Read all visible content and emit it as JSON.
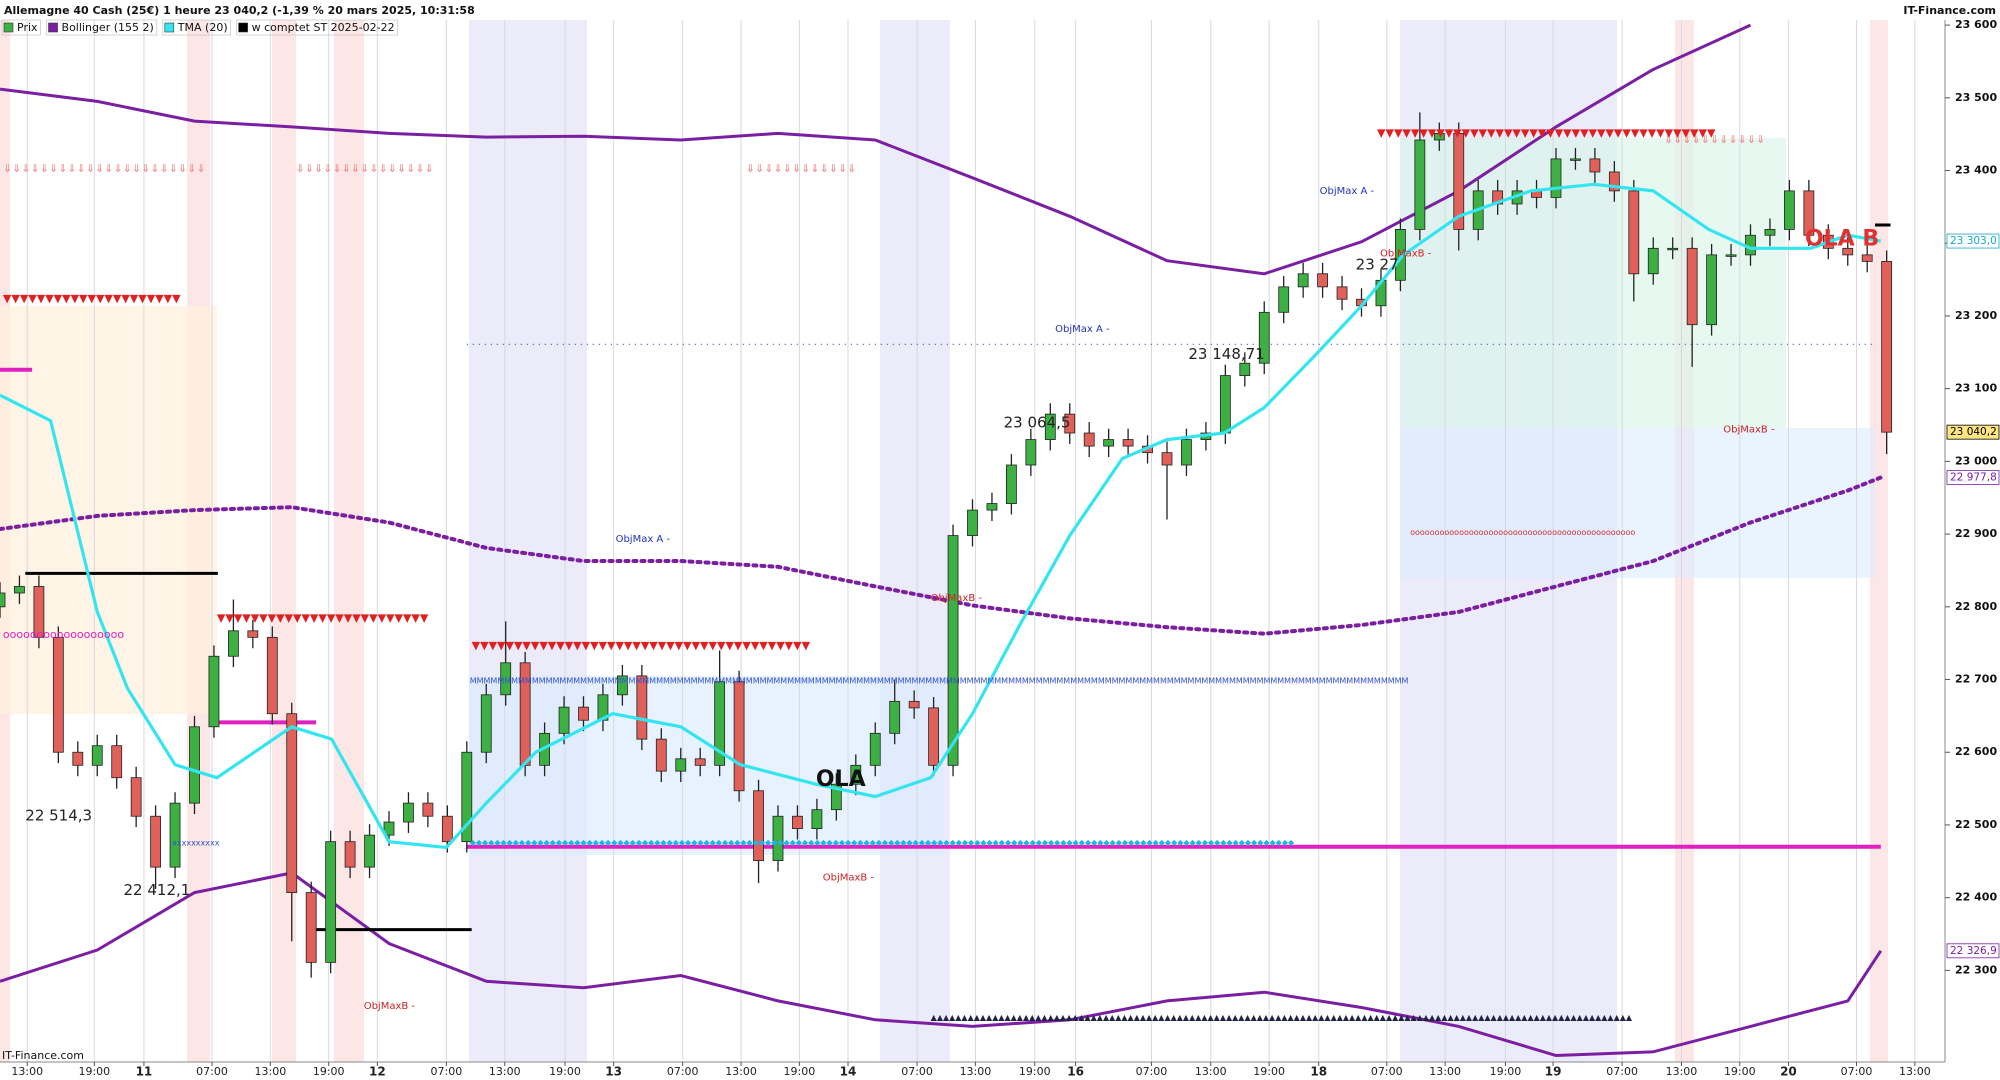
{
  "chart_data": {
    "type": "candlestick",
    "title": "Allemagne 40 Cash (25€) 1 heure 23 040,2 (-1,39 % 20 mars 2025, 10:31:58",
    "source": "IT-Finance.com",
    "xlim": [
      0,
      200
    ],
    "ylim": [
      22174,
      23607
    ],
    "grid": "x",
    "xticks": [
      {
        "value": 2.8,
        "label": "13:00"
      },
      {
        "value": 9.7,
        "label": "19:00"
      },
      {
        "value": 14.8,
        "label": "11"
      },
      {
        "value": 21.8,
        "label": "07:00"
      },
      {
        "value": 27.8,
        "label": "13:00"
      },
      {
        "value": 33.8,
        "label": "19:00"
      },
      {
        "value": 38.8,
        "label": "12"
      },
      {
        "value": 45.9,
        "label": "07:00"
      },
      {
        "value": 51.9,
        "label": "13:00"
      },
      {
        "value": 58.1,
        "label": "19:00"
      },
      {
        "value": 63.1,
        "label": "13"
      },
      {
        "value": 70.2,
        "label": "07:00"
      },
      {
        "value": 76.2,
        "label": "13:00"
      },
      {
        "value": 82.2,
        "label": "19:00"
      },
      {
        "value": 87.2,
        "label": "14"
      },
      {
        "value": 94.3,
        "label": "07:00"
      },
      {
        "value": 100.3,
        "label": "13:00"
      },
      {
        "value": 106.4,
        "label": "19:00"
      },
      {
        "value": 110.6,
        "label": "16"
      },
      {
        "value": 118.4,
        "label": "07:00"
      },
      {
        "value": 124.5,
        "label": "13:00"
      },
      {
        "value": 130.5,
        "label": "19:00"
      },
      {
        "value": 135.6,
        "label": "18"
      },
      {
        "value": 142.6,
        "label": "07:00"
      },
      {
        "value": 148.6,
        "label": "13:00"
      },
      {
        "value": 154.8,
        "label": "19:00"
      },
      {
        "value": 159.7,
        "label": "19"
      },
      {
        "value": 166.8,
        "label": "07:00"
      },
      {
        "value": 172.9,
        "label": "13:00"
      },
      {
        "value": 178.9,
        "label": "19:00"
      },
      {
        "value": 183.9,
        "label": "20"
      },
      {
        "value": 190.9,
        "label": "07:00"
      },
      {
        "value": 196.9,
        "label": "13:00"
      }
    ],
    "yticks": [
      {
        "value": 22300,
        "label": "22 300"
      },
      {
        "value": 22400,
        "label": "22 400"
      },
      {
        "value": 22500,
        "label": "22 500"
      },
      {
        "value": 22600,
        "label": "22 600"
      },
      {
        "value": 22700,
        "label": "22 700"
      },
      {
        "value": 22800,
        "label": "22 800"
      },
      {
        "value": 22900,
        "label": "22 900"
      },
      {
        "value": 23000,
        "label": "23 000"
      },
      {
        "value": 23100,
        "label": "23 100"
      },
      {
        "value": 23200,
        "label": "23 200"
      },
      {
        "value": 23300,
        "label": "23 300"
      },
      {
        "value": 23400,
        "label": "23 400"
      },
      {
        "value": 23500,
        "label": "23 500"
      },
      {
        "value": 23600,
        "label": "23 600"
      }
    ],
    "price": {
      "name": "Prix",
      "color": "#3cb043",
      "down_color": "#e0605a",
      "x": [
        0,
        2,
        4,
        6,
        8,
        10,
        12,
        14,
        16,
        18,
        20,
        22,
        24,
        26,
        28,
        30,
        32,
        34,
        36,
        38,
        40,
        42,
        44,
        46,
        48,
        50,
        52,
        54,
        56,
        58,
        60,
        62,
        64,
        66,
        68,
        70,
        72,
        74,
        76,
        78,
        80,
        82,
        84,
        86,
        88,
        90,
        92,
        94,
        96,
        98,
        100,
        102,
        104,
        106,
        108,
        110,
        112,
        114,
        116,
        118,
        120,
        122,
        124,
        126,
        128,
        130,
        132,
        134,
        136,
        138,
        140,
        142,
        144,
        146,
        148,
        150,
        152,
        154,
        156,
        158,
        160,
        162,
        164,
        166,
        168,
        170,
        172,
        174,
        176,
        178,
        180,
        182,
        184,
        186,
        188,
        190,
        192,
        194
      ],
      "open": [
        22800,
        22819,
        22828,
        22758,
        22600,
        22582,
        22609,
        22565,
        22512,
        22442,
        22530,
        22635,
        22732,
        22767,
        22758,
        22653,
        22407,
        22311,
        22477,
        22442,
        22486,
        22504,
        22530,
        22512,
        22477,
        22600,
        22679,
        22723,
        22582,
        22626,
        22662,
        22644,
        22679,
        22705,
        22618,
        22574,
        22591,
        22582,
        22697,
        22547,
        22451,
        22512,
        22495,
        22521,
        22556,
        22582,
        22626,
        22670,
        22661,
        22582,
        22898,
        22933,
        22942,
        22995,
        23030,
        23065,
        23039,
        23021,
        23030,
        23021,
        23012,
        22995,
        23030,
        23039,
        23118,
        23135,
        23205,
        23240,
        23258,
        23240,
        23223,
        23214,
        23249,
        23319,
        23442,
        23451,
        23319,
        23372,
        23354,
        23372,
        23363,
        23416,
        23416,
        23398,
        23372,
        23258,
        23293,
        23293,
        23188,
        23284,
        23284,
        23311,
        23319,
        23372,
        23311,
        23293,
        23284,
        23275
      ],
      "high": [
        22834,
        22843,
        22843,
        22773,
        22615,
        22624,
        22624,
        22580,
        22527,
        22545,
        22650,
        22747,
        22810,
        22782,
        22773,
        22668,
        22422,
        22492,
        22492,
        22501,
        22519,
        22545,
        22545,
        22527,
        22615,
        22694,
        22780,
        22738,
        22641,
        22677,
        22677,
        22694,
        22720,
        22720,
        22633,
        22606,
        22606,
        22740,
        22712,
        22562,
        22527,
        22527,
        22536,
        22571,
        22597,
        22641,
        22700,
        22685,
        22676,
        22913,
        22948,
        22957,
        23010,
        23045,
        23080,
        23080,
        23054,
        23045,
        23045,
        23036,
        23027,
        23045,
        23054,
        23133,
        23150,
        23220,
        23255,
        23273,
        23273,
        23255,
        23238,
        23264,
        23334,
        23480,
        23466,
        23466,
        23387,
        23387,
        23387,
        23387,
        23431,
        23431,
        23431,
        23413,
        23387,
        23308,
        23308,
        23308,
        23299,
        23299,
        23326,
        23334,
        23387,
        23387,
        23326,
        23308,
        23299,
        23290
      ],
      "low": [
        22785,
        22804,
        22743,
        22585,
        22567,
        22567,
        22550,
        22497,
        22412,
        22427,
        22515,
        22620,
        22717,
        22743,
        22638,
        22340,
        22290,
        22296,
        22427,
        22427,
        22471,
        22489,
        22497,
        22462,
        22462,
        22585,
        22664,
        22567,
        22567,
        22611,
        22629,
        22629,
        22664,
        22603,
        22559,
        22559,
        22567,
        22567,
        22532,
        22420,
        22436,
        22480,
        22480,
        22506,
        22541,
        22567,
        22611,
        22646,
        22567,
        22567,
        22883,
        22918,
        22927,
        22980,
        23015,
        23024,
        23006,
        23006,
        23006,
        22997,
        22920,
        22980,
        23015,
        23024,
        23103,
        23120,
        23190,
        23225,
        23225,
        23208,
        23199,
        23199,
        23234,
        23304,
        23427,
        23290,
        23304,
        23339,
        23339,
        23348,
        23348,
        23401,
        23383,
        23357,
        23220,
        23243,
        23278,
        23130,
        23173,
        23269,
        23269,
        23296,
        23304,
        23296,
        23278,
        23269,
        23260,
        23010
      ],
      "close": [
        22819,
        22828,
        22758,
        22600,
        22582,
        22609,
        22565,
        22512,
        22442,
        22530,
        22635,
        22732,
        22767,
        22758,
        22653,
        22407,
        22311,
        22477,
        22442,
        22486,
        22504,
        22530,
        22512,
        22477,
        22600,
        22679,
        22723,
        22582,
        22626,
        22662,
        22644,
        22679,
        22705,
        22618,
        22574,
        22591,
        22582,
        22697,
        22547,
        22451,
        22512,
        22495,
        22521,
        22556,
        22582,
        22626,
        22670,
        22661,
        22582,
        22898,
        22933,
        22942,
        22995,
        23030,
        23065,
        23039,
        23021,
        23030,
        23021,
        23012,
        22995,
        23030,
        23039,
        23118,
        23135,
        23205,
        23240,
        23258,
        23240,
        23223,
        23214,
        23249,
        23319,
        23442,
        23451,
        23319,
        23372,
        23354,
        23372,
        23363,
        23416,
        23416,
        23398,
        23372,
        23258,
        23293,
        23293,
        23188,
        23284,
        23284,
        23311,
        23319,
        23372,
        23311,
        23293,
        23284,
        23275,
        23040.2
      ]
    },
    "bollinger": {
      "name": "Bollinger (155 2)",
      "color": "#7b1fa2",
      "x": [
        0,
        10,
        20,
        30,
        40,
        50,
        60,
        70,
        80,
        90,
        100,
        110,
        120,
        130,
        140,
        150,
        160,
        170,
        180,
        190,
        193.4
      ],
      "upper": [
        23512,
        23495,
        23468,
        23460,
        23451,
        23446,
        23447,
        23442,
        23451,
        23442,
        23390,
        23337,
        23276,
        23258,
        23302,
        23372,
        23460,
        23539,
        23600,
        null,
        null
      ],
      "middle": [
        22907,
        22925,
        22933,
        22937,
        22916,
        22881,
        22863,
        22863,
        22855,
        22828,
        22802,
        22784,
        22772,
        22763,
        22775,
        22793,
        22828,
        22863,
        22916,
        22960,
        22977.8
      ],
      "lower": [
        22285,
        22328,
        22407,
        22434,
        22337,
        22285,
        22276,
        22293,
        22258,
        22232,
        22223,
        22232,
        22258,
        22270,
        22249,
        22223,
        22183,
        22188,
        22223,
        22258,
        22326.9
      ]
    },
    "tma": {
      "name": "TMA (20)",
      "color": "#33e5f0",
      "x": [
        0,
        5.2,
        10,
        13.1,
        18,
        22.3,
        30,
        34.1,
        40,
        45.9,
        50,
        55.1,
        63,
        70,
        76.1,
        83.9,
        90,
        95.7,
        100,
        104.9,
        110,
        115.4,
        120,
        125.9,
        130,
        135.1,
        140,
        144.3,
        150,
        157.4,
        163.9,
        170,
        175.7,
        180,
        186.2,
        190,
        193.4
      ],
      "values": [
        23091,
        23056,
        22793,
        22688,
        22583,
        22565,
        22635,
        22618,
        22477,
        22469,
        22530,
        22600,
        22653,
        22635,
        22583,
        22556,
        22539,
        22565,
        22653,
        22776,
        22898,
        23004,
        23030,
        23039,
        23074,
        23144,
        23214,
        23284,
        23337,
        23372,
        23381,
        23372,
        23319,
        23293,
        23293,
        23311,
        23303
      ]
    },
    "support": {
      "name": "w comptet ST 2025-02-22",
      "color": "#000000",
      "lines": [
        {
          "value": 22846,
          "x": [
            2.6,
            22.4
          ]
        },
        {
          "value": 22356,
          "x": [
            32,
            48.5
          ]
        },
        {
          "value": 23325,
          "x": [
            192.8,
            194.4
          ]
        }
      ]
    },
    "levels": {
      "color": "#e020c0",
      "lines": [
        {
          "value": 22470,
          "x": [
            48,
            193.4
          ]
        },
        {
          "value": 23126,
          "x": [
            0,
            3.3
          ]
        },
        {
          "value": 22641,
          "x": [
            22,
            32.5
          ]
        }
      ]
    },
    "dotted_levels": {
      "color": "#3040c0",
      "lines": [
        {
          "value": 23161,
          "x": [
            48,
            193
          ]
        }
      ]
    },
    "price_tags": [
      {
        "value": 23303.0,
        "label": "23 303,0",
        "color": "#1aa7c9",
        "fill": "#ffffff"
      },
      {
        "value": 23040.2,
        "label": "23 040,2",
        "color": "#000000",
        "fill": "#ffe680"
      },
      {
        "value": 22977.8,
        "label": "22 977,8",
        "color": "#7b1fa2",
        "fill": "#ffffff"
      },
      {
        "value": 22326.9,
        "label": "22 326,9",
        "color": "#7b1fa2",
        "fill": "#ffffff"
      }
    ],
    "annotations": [
      {
        "text": "22 514,3",
        "x": 2.6,
        "y": 22512,
        "color": "#222222",
        "style": "label"
      },
      {
        "text": "22 412,1",
        "x": 12.7,
        "y": 22410,
        "color": "#222222",
        "style": "label"
      },
      {
        "text": "23 064,5",
        "x": 103.2,
        "y": 23053,
        "color": "#222222",
        "style": "label"
      },
      {
        "text": "23 148,71",
        "x": 122.2,
        "y": 23147,
        "color": "#222222",
        "style": "label"
      },
      {
        "text": "23 27",
        "x": 139.4,
        "y": 23270,
        "color": "#222222",
        "style": "label"
      },
      {
        "text": "ObjMax A -",
        "x": 63.3,
        "y": 22893,
        "color": "#2233bb",
        "style": "small"
      },
      {
        "text": "ObjMax A -",
        "x": 108.5,
        "y": 23182,
        "color": "#2233bb",
        "style": "small"
      },
      {
        "text": "ObjMax A -",
        "x": 135.7,
        "y": 23372,
        "color": "#2233bb",
        "style": "small"
      },
      {
        "text": "ObjMaxB -",
        "x": 37.4,
        "y": 22251,
        "color": "#cc2222",
        "style": "small"
      },
      {
        "text": "ObjMaxB -",
        "x": 84.6,
        "y": 22428,
        "color": "#cc2222",
        "style": "small"
      },
      {
        "text": "ObjMaxB -",
        "x": 95.7,
        "y": 22812,
        "color": "#cc2222",
        "style": "small"
      },
      {
        "text": "ObjMaxB -",
        "x": 141.9,
        "y": 23286,
        "color": "#cc2222",
        "style": "small"
      },
      {
        "text": "ObjMaxB -",
        "x": 177.2,
        "y": 23044,
        "color": "#cc2222",
        "style": "small"
      },
      {
        "text": "OLA B",
        "x": 185.6,
        "y": 23305,
        "color": "#e03030",
        "style": "big"
      },
      {
        "text": "OLA",
        "x": 83.9,
        "y": 22562,
        "color": "#111111",
        "style": "big"
      },
      {
        "text": "⇓⇓⇓⇓⇓⇓⇓⇓⇓⇓⇓⇓⇓⇓⇓⇓⇓⇓⇓⇓⇓⇓",
        "x": 0.3,
        "y": 23402,
        "color": "#f08080",
        "style": "symbol"
      },
      {
        "text": "⇓⇓⇓⇓⇓⇓⇓⇓⇓⇓⇓⇓⇓⇓⇓",
        "x": 30.4,
        "y": 23402,
        "color": "#f08080",
        "style": "symbol"
      },
      {
        "text": "⇓⇓⇓⇓⇓⇓⇓⇓⇓⇓⇓⇓",
        "x": 76.7,
        "y": 23402,
        "color": "#f08080",
        "style": "symbol"
      },
      {
        "text": "⇓⇓⇓⇓⇓⇓⇓⇓⇓⇓⇓",
        "x": 171.1,
        "y": 23442,
        "color": "#f08080",
        "style": "symbol"
      },
      {
        "text": "▼▼▼▼▼▼▼▼▼▼▼▼▼▼▼▼▼▼▼▼▼",
        "x": 0.3,
        "y": 23223,
        "color": "#e02020",
        "style": "symbol"
      },
      {
        "text": "▼▼▼▼▼▼▼▼▼▼▼▼▼▼▼▼▼▼▼▼▼▼▼▼▼",
        "x": 22.3,
        "y": 22784,
        "color": "#e02020",
        "style": "symbol"
      },
      {
        "text": "▼▼▼▼▼▼▼▼▼▼▼▼▼▼▼▼▼▼▼▼▼▼▼▼▼▼▼▼▼▼▼▼▼▼▼▼▼▼▼▼",
        "x": 48.5,
        "y": 22746,
        "color": "#e02020",
        "style": "symbol"
      },
      {
        "text": "▼▼▼▼▼▼▼▼▼▼▼▼▼▼▼▼▼▼▼▼▼▼▼▼▼▼▼▼▼▼▼▼▼▼▼▼▼▼▼▼",
        "x": 141.6,
        "y": 23451,
        "color": "#e02020",
        "style": "symbol"
      },
      {
        "text": "MMMMMMMMMMMMMMMMMMMMMMMMMMMMMMMMMMMMMMMMMMMMMMMMMMMMMMMMMMMMMMMMMMMMMMMMMMMMMMMMMMMMMMMMMMMMMMMMMMMMMMMMMMMMMMMMMMMMMMMMMMMMMMMMMMMMMMMM",
        "x": 48.3,
        "y": 22698,
        "color": "#3050d0",
        "style": "tiny"
      },
      {
        "text": "◆◆◆◆◆◆◆◆◆◆◆◆◆◆◆◆◆◆◆◆◆◆◆◆◆◆◆◆◆◆◆◆◆◆◆◆◆◆◆◆◆◆◆◆◆◆◆◆◆◆◆◆◆◆◆◆◆◆◆◆◆◆◆◆◆◆◆◆◆◆◆◆◆◆◆◆◆◆◆◆◆◆◆◆◆◆◆◆◆◆◆◆◆◆◆◆◆◆◆◆◆◆◆◆◆◆◆◆◆◆◆◆◆◆◆◆◆◆◆◆◆◆◆◆◆◆◆◆◆◆◆◆◆◆",
        "x": 48.3,
        "y": 22476,
        "color": "#22b5e0",
        "style": "tiny"
      },
      {
        "text": "▲▲▲▲▲▲▲▲▲▲▲▲▲▲▲▲▲▲▲▲▲▲▲▲▲▲▲▲▲▲▲▲▲▲▲▲▲▲▲▲▲▲▲▲▲▲▲▲▲▲▲▲▲▲▲▲▲▲▲▲▲▲▲▲▲▲▲▲▲▲▲▲▲▲▲▲▲▲▲▲▲▲▲▲▲▲▲▲▲▲▲▲▲▲▲▲▲▲▲▲▲▲▲▲▲▲▲▲▲▲▲▲▲▲",
        "x": 95.7,
        "y": 22235,
        "color": "#222244",
        "style": "tiny"
      },
      {
        "text": "oooooooooooooooooooooooooooooooooooooooooooooo",
        "x": 145,
        "y": 22902,
        "color": "#d03030",
        "style": "tiny"
      },
      {
        "text": "oooooooooooooooooo",
        "x": 0.3,
        "y": 22761,
        "color": "#e020c0",
        "style": "symbol"
      },
      {
        "text": "xxxxxxxxxx",
        "x": 17.7,
        "y": 22475,
        "color": "#3050d0",
        "style": "tiny"
      }
    ],
    "legend": [
      "price",
      "bollinger",
      "tma",
      "support"
    ]
  }
}
